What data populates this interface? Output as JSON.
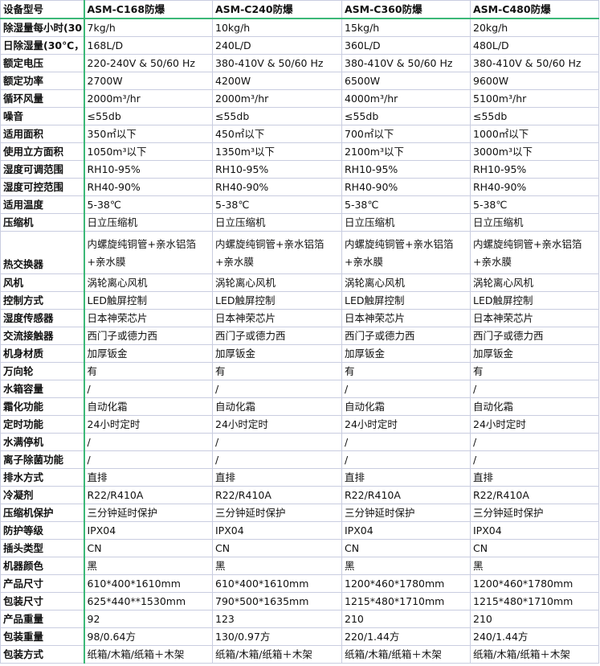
{
  "header": [
    "设备型号",
    "ASM-C168防爆",
    "ASM-C240防爆",
    "ASM-C360防爆",
    "ASM-C480防爆"
  ],
  "rows": [
    [
      "除湿量每小时(30",
      "7kg/h",
      "10kg/h",
      "15kg/h",
      "20kg/h"
    ],
    [
      "日除湿量(30℃，",
      "168L/D",
      "240L/D",
      "360L/D",
      "480L/D"
    ],
    [
      "额定电压",
      "220-240V & 50/60 Hz",
      "380-410V & 50/60 Hz",
      "380-410V & 50/60 Hz",
      "380-410V & 50/60 Hz"
    ],
    [
      "额定功率",
      "2700W",
      "4200W",
      "6500W",
      "9600W"
    ],
    [
      "循环风量",
      "2000m³/hr",
      "2000m³/hr",
      "4000m³/hr",
      "5100m³/hr"
    ],
    [
      "噪音",
      "≤55db",
      "≤55db",
      "≤55db",
      "≤55db"
    ],
    [
      "适用面积",
      "350㎡以下",
      "450㎡以下",
      "700㎡以下",
      "1000㎡以下"
    ],
    [
      "使用立方面积",
      "1050m³以下",
      "1350m³以下",
      "2100m³以下",
      "3000m³以下"
    ],
    [
      "湿度可调范围",
      "RH10-95%",
      "RH10-95%",
      "RH10-95%",
      "RH10-95%"
    ],
    [
      "湿度可控范围",
      "RH40-90%",
      "RH40-90%",
      "RH40-90%",
      "RH40-90%"
    ],
    [
      "适用温度",
      "5-38℃",
      "5-38℃",
      "5-38℃",
      "5-38℃"
    ],
    [
      "压缩机",
      "日立压缩机",
      "日立压缩机",
      "日立压缩机",
      "日立压缩机"
    ],
    [
      "热交换器",
      "内螺旋纯铜管+亲水铝箔+亲水膜",
      "内螺旋纯铜管+亲水铝箔+亲水膜",
      "内螺旋纯铜管+亲水铝箔+亲水膜",
      "内螺旋纯铜管+亲水铝箔+亲水膜"
    ],
    [
      "风机",
      "涡轮离心风机",
      "涡轮离心风机",
      "涡轮离心风机",
      "涡轮离心风机"
    ],
    [
      "控制方式",
      "LED触屏控制",
      "LED触屏控制",
      "LED触屏控制",
      "LED触屏控制"
    ],
    [
      "湿度传感器",
      "日本神荣芯片",
      "日本神荣芯片",
      "日本神荣芯片",
      "日本神荣芯片"
    ],
    [
      "交流接触器",
      "西门子或德力西",
      "西门子或德力西",
      "西门子或德力西",
      "西门子或德力西"
    ],
    [
      "机身材质",
      "加厚钣金",
      "加厚钣金",
      "加厚钣金",
      "加厚钣金"
    ],
    [
      "万向轮",
      "有",
      "有",
      "有",
      "有"
    ],
    [
      "水箱容量",
      "/",
      "/",
      "/",
      "/"
    ],
    [
      "霜化功能",
      "自动化霜",
      "自动化霜",
      "自动化霜",
      "自动化霜"
    ],
    [
      "定时功能",
      "24小时定时",
      "24小时定时",
      "24小时定时",
      "24小时定时"
    ],
    [
      "水满停机",
      "/",
      "/",
      "/",
      "/"
    ],
    [
      "离子除菌功能",
      "/",
      "/",
      "/",
      "/"
    ],
    [
      "排水方式",
      "直排",
      "直排",
      "直排",
      "直排"
    ],
    [
      "冷凝剂",
      "R22/R410A",
      "R22/R410A",
      "R22/R410A",
      "R22/R410A"
    ],
    [
      "压缩机保护",
      "三分钟延时保护",
      "三分钟延时保护",
      "三分钟延时保护",
      "三分钟延时保护"
    ],
    [
      "防护等级",
      "IPX04",
      "IPX04",
      "IPX04",
      "IPX04"
    ],
    [
      "插头类型",
      "CN",
      "CN",
      "CN",
      "CN"
    ],
    [
      "机器颜色",
      "黑",
      "黑",
      "黑",
      "黑"
    ],
    [
      "产品尺寸",
      "610*400*1610mm",
      "610*400*1610mm",
      "1200*460*1780mm",
      "1200*460*1780mm"
    ],
    [
      "包装尺寸",
      "625*440**1530mm",
      "790*500*1635mm",
      "1215*480*1710mm",
      "1215*480*1710mm"
    ],
    [
      "产品重量",
      "92",
      "123",
      "210",
      "210"
    ],
    [
      "包装重量",
      "98/0.64方",
      "130/0.97方",
      "220/1.44方",
      "240/1.44方"
    ],
    [
      "包装方式",
      "纸箱/木箱/纸箱＋木架",
      "纸箱/木箱/纸箱＋木架",
      "纸箱/木箱/纸箱＋木架",
      "纸箱/木箱/纸箱＋木架"
    ]
  ]
}
